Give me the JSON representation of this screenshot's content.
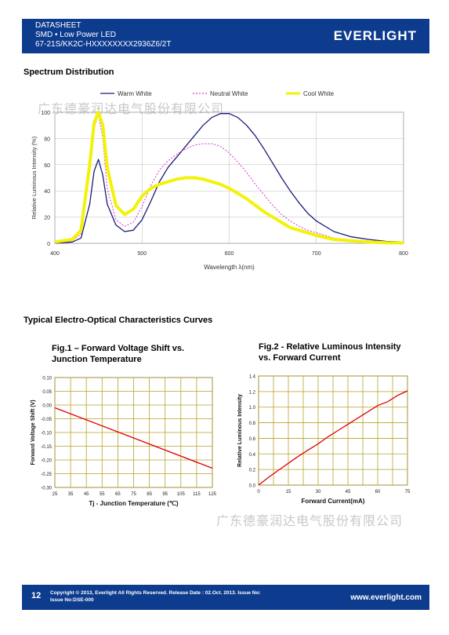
{
  "header": {
    "line1": "DATASHEET",
    "line2": "SMD • Low Power LED",
    "line3": "67-21S/KK2C-HXXXXXXXX2936Z6/2T",
    "logo": "EVERLIGHT"
  },
  "spectrum": {
    "title": "Spectrum Distribution",
    "watermark": "广东德豪润达电气股份有限公司",
    "chart_data": {
      "type": "line",
      "xlabel": "Wavelength λ(nm)",
      "ylabel": "Relative Luminous Intensity (%)",
      "xlim": [
        400,
        800
      ],
      "ylim": [
        0,
        100
      ],
      "xticks": [
        "400",
        "500",
        "600",
        "700",
        "800"
      ],
      "yticks": [
        "0",
        "20",
        "40",
        "60",
        "80",
        "100"
      ],
      "legend_position": "top",
      "series": [
        {
          "name": "Warm White",
          "color": "#1a1a7a",
          "dash": "none",
          "x": [
            400,
            420,
            430,
            440,
            445,
            450,
            455,
            460,
            470,
            480,
            490,
            500,
            510,
            520,
            530,
            540,
            550,
            560,
            570,
            580,
            590,
            600,
            610,
            620,
            630,
            640,
            650,
            660,
            670,
            680,
            690,
            700,
            720,
            740,
            760,
            780,
            800
          ],
          "y": [
            0,
            1,
            4,
            30,
            55,
            64,
            52,
            30,
            14,
            9,
            10,
            18,
            32,
            47,
            58,
            66,
            74,
            82,
            90,
            96,
            99,
            99,
            96,
            90,
            82,
            72,
            61,
            50,
            40,
            31,
            23,
            17,
            9,
            5,
            3,
            1.5,
            1
          ]
        },
        {
          "name": "Neutral White",
          "color": "#d63ad0",
          "dash": "2,2",
          "x": [
            400,
            420,
            430,
            440,
            445,
            450,
            455,
            460,
            470,
            480,
            490,
            500,
            510,
            520,
            530,
            540,
            550,
            560,
            570,
            580,
            590,
            600,
            610,
            620,
            630,
            640,
            650,
            660,
            670,
            680,
            690,
            700,
            720,
            740,
            760,
            780,
            800
          ],
          "y": [
            0,
            2,
            7,
            55,
            88,
            98,
            80,
            42,
            18,
            13,
            16,
            28,
            44,
            56,
            63,
            68,
            72,
            75,
            76,
            76,
            74,
            69,
            62,
            54,
            45,
            37,
            29,
            22,
            17,
            13,
            10,
            8,
            4,
            2.5,
            1.5,
            1,
            0.5
          ]
        },
        {
          "name": "Cool White",
          "color": "#f2f20a",
          "dash": "none",
          "x": [
            400,
            420,
            430,
            440,
            445,
            450,
            455,
            460,
            470,
            480,
            490,
            500,
            510,
            520,
            530,
            540,
            550,
            560,
            570,
            580,
            590,
            600,
            610,
            620,
            630,
            640,
            650,
            660,
            670,
            680,
            690,
            700,
            720,
            740,
            760,
            780,
            800
          ],
          "y": [
            1,
            3,
            10,
            60,
            92,
            100,
            90,
            58,
            29,
            22,
            26,
            36,
            42,
            45,
            47,
            49,
            50,
            50,
            49,
            47,
            45,
            42,
            38,
            34,
            29,
            24,
            20,
            16,
            12,
            10,
            8,
            6,
            3,
            2,
            1,
            0.5,
            0.3
          ]
        }
      ]
    }
  },
  "eo": {
    "title": "Typical Electro-Optical Characteristics Curves",
    "fig1": {
      "title_line1": "Fig.1 – Forward Voltage Shift vs.",
      "title_line2": "Junction Temperature",
      "chart_data": {
        "type": "line",
        "xlabel": "Tj - Junction Temperature (℃)",
        "ylabel": "Forward Voltage Shift (V)",
        "xlim": [
          25,
          125
        ],
        "ylim": [
          -0.3,
          0.1
        ],
        "xticks": [
          "25",
          "35",
          "45",
          "55",
          "65",
          "75",
          "85",
          "95",
          "105",
          "115",
          "125"
        ],
        "yticks": [
          "0.10",
          "0.05",
          "0.00",
          "-0.05",
          "-0.10",
          "-0.15",
          "-0.20",
          "-0.25",
          "-0.30"
        ],
        "series": [
          {
            "color": "#e00000",
            "x": [
              25,
              125
            ],
            "y": [
              -0.01,
              -0.23
            ]
          }
        ]
      }
    },
    "fig2": {
      "title_line1": "Fig.2 - Relative Luminous Intensity",
      "title_line2": "vs. Forward Current",
      "chart_data": {
        "type": "line",
        "xlabel": "Forward Current(mA)",
        "ylabel": "Relative Luminous Intensity",
        "xlim": [
          0,
          75
        ],
        "ylim": [
          0.0,
          1.4
        ],
        "xticks": [
          "0",
          "15",
          "30",
          "45",
          "60",
          "75"
        ],
        "yticks": [
          "1.4",
          "1.2",
          "1.0",
          "0.8",
          "0.6",
          "0.4",
          "0.2",
          "0.0"
        ],
        "series": [
          {
            "color": "#e00000",
            "x": [
              0,
              5,
              10,
              15,
              20,
              25,
              30,
              35,
              40,
              45,
              50,
              55,
              60,
              65,
              70,
              75
            ],
            "y": [
              0,
              0.1,
              0.19,
              0.28,
              0.37,
              0.45,
              0.53,
              0.62,
              0.7,
              0.78,
              0.86,
              0.94,
              1.02,
              1.07,
              1.15,
              1.21
            ]
          }
        ]
      }
    }
  },
  "watermark2": "广东德豪润达电气股份有限公司",
  "footer": {
    "page": "12",
    "copyright": "Copyright © 2013, Everlight All Rights Reserved. Release Date : 02.Oct. 2013. Issue No:",
    "issue": "Issue No:DSE-000",
    "website": "www.everlight.com"
  }
}
